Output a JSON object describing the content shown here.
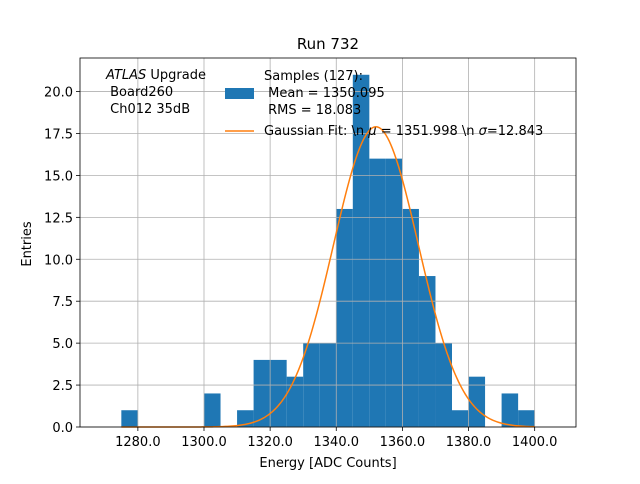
{
  "chart_data": {
    "type": "bar",
    "title": "Run 732",
    "xlabel": "Energy [ADC Counts]",
    "ylabel": "Entries",
    "xlim": [
      1262.5,
      1412.5
    ],
    "ylim": [
      0,
      22
    ],
    "xticks": [
      "1280.0",
      "1300.0",
      "1320.0",
      "1340.0",
      "1360.0",
      "1380.0",
      "1400.0"
    ],
    "xtick_values": [
      1280,
      1300,
      1320,
      1340,
      1360,
      1380,
      1400
    ],
    "yticks": [
      "0.0",
      "2.5",
      "5.0",
      "7.5",
      "10.0",
      "12.5",
      "15.0",
      "17.5",
      "20.0"
    ],
    "ytick_values": [
      0,
      2.5,
      5,
      7.5,
      10,
      12.5,
      15,
      17.5,
      20
    ],
    "grid": true,
    "legend_position": "top-center",
    "bin_edges": [
      1275,
      1280,
      1285,
      1290,
      1295,
      1300,
      1305,
      1310,
      1315,
      1320,
      1325,
      1330,
      1335,
      1340,
      1345,
      1350,
      1355,
      1360,
      1365,
      1370,
      1375,
      1380,
      1385,
      1390,
      1395,
      1400
    ],
    "series": [
      {
        "name": "Samples (127):",
        "name_lines": [
          "Samples (127):",
          " Mean = 1350.095",
          " RMS = 18.083"
        ],
        "kind": "histogram",
        "color": "#1f77b4",
        "values": [
          1,
          0,
          0,
          0,
          0,
          2,
          0,
          1,
          4,
          4,
          3,
          5,
          5,
          13,
          21,
          16,
          16,
          13,
          9,
          5,
          1,
          3,
          0,
          2,
          1
        ]
      },
      {
        "name": "Gaussian Fit: \\n $\\mu$ = 1351.998 \\n $\\sigma$=12.843",
        "name_parts": [
          "Gaussian Fit: \\n ",
          "μ",
          " = 1351.998 \\n ",
          "σ",
          "=12.843"
        ],
        "kind": "line",
        "color": "#ff7f0e",
        "mu": 1351.998,
        "sigma": 12.843,
        "amplitude": 17.9,
        "x_range": [
          1275,
          1400
        ]
      }
    ],
    "annotations": [
      {
        "text_italic": "ATLAS",
        "text": " Upgrade"
      },
      {
        "text": " Board260"
      },
      {
        "text": " Ch012 35dB"
      }
    ]
  }
}
